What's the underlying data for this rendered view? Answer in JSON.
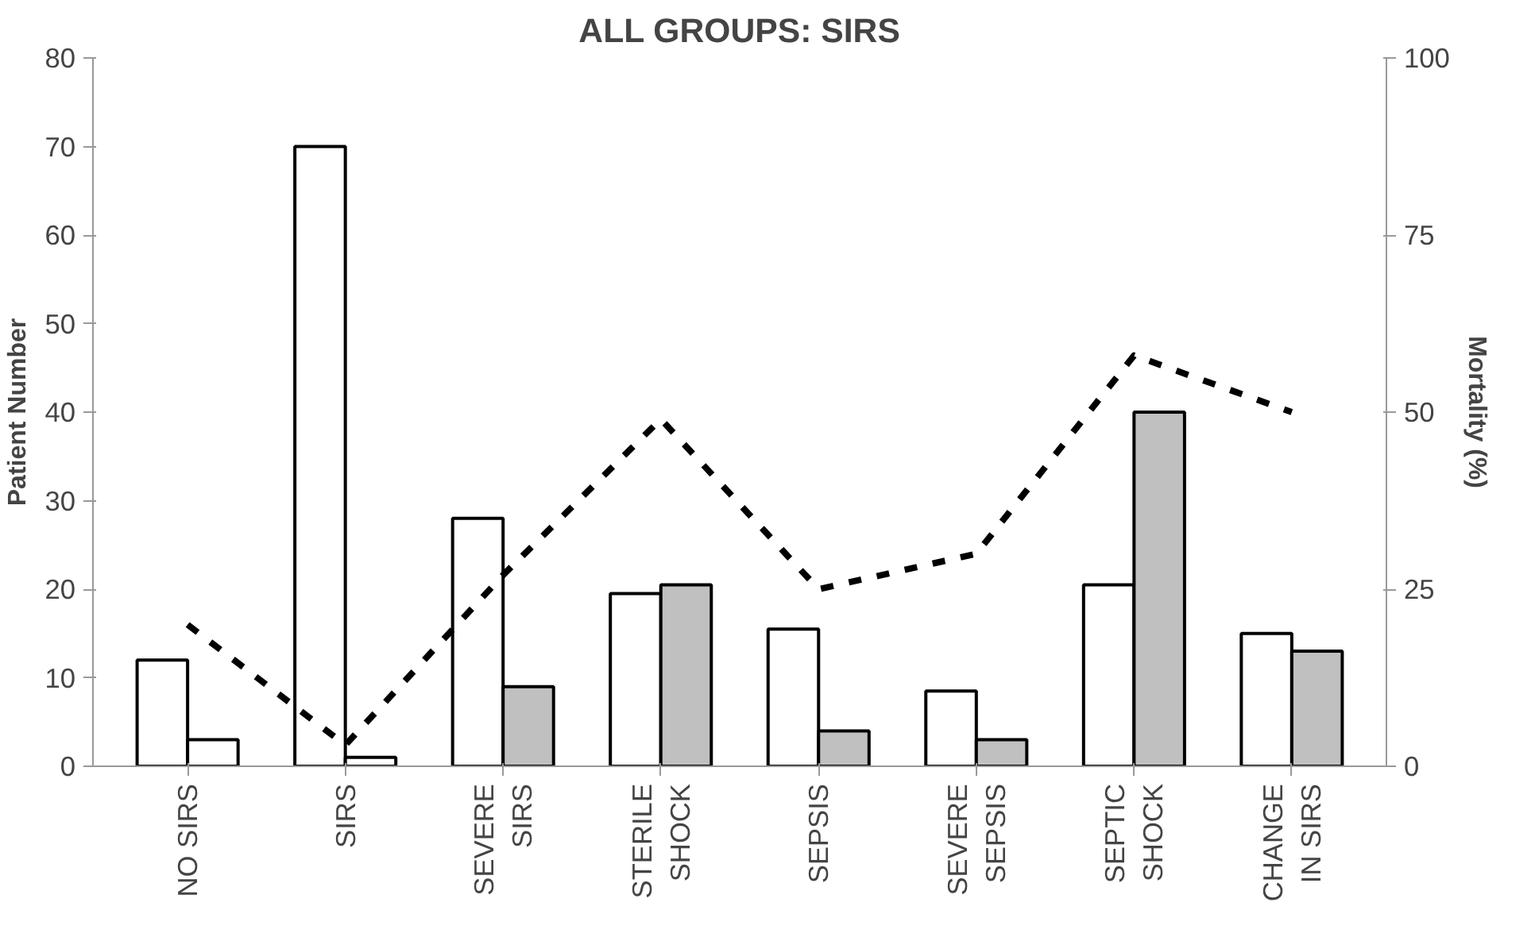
{
  "chart_data": {
    "type": "bar",
    "title": "ALL GROUPS: SIRS",
    "ylabel": "Patient Number",
    "y2label": "Mortality (%)",
    "categories": [
      "NO SIRS",
      "SIRS",
      "SEVERE\nSIRS",
      "STERILE\nSHOCK",
      "SEPSIS",
      "SEVERE\nSEPSIS",
      "SEPTIC\nSHOCK",
      "CHANGE\nIN SIRS"
    ],
    "series": [
      {
        "color": "#ffffff",
        "values": [
          12,
          70,
          28,
          19.5,
          15.5,
          8.5,
          20.5,
          15
        ]
      },
      {
        "colors": [
          "#ffffff",
          "#ffffff",
          "#c0c0c0",
          "#c0c0c0",
          "#c0c0c0",
          "#c0c0c0",
          "#c0c0c0",
          "#c0c0c0"
        ],
        "values": [
          3,
          1,
          9,
          20.5,
          4,
          3,
          40,
          13
        ]
      },
      {
        "type": "line",
        "axis": "y2",
        "color": "#000000",
        "line_style": "dashed",
        "values": [
          20,
          3,
          27,
          49,
          25,
          30,
          58,
          50
        ]
      }
    ],
    "ylim": [
      0,
      80
    ],
    "yticks": [
      0,
      10,
      20,
      30,
      40,
      50,
      60,
      70,
      80
    ],
    "y2lim": [
      0,
      100
    ],
    "y2ticks": [
      0,
      25,
      50,
      75,
      100
    ],
    "grid": false
  }
}
